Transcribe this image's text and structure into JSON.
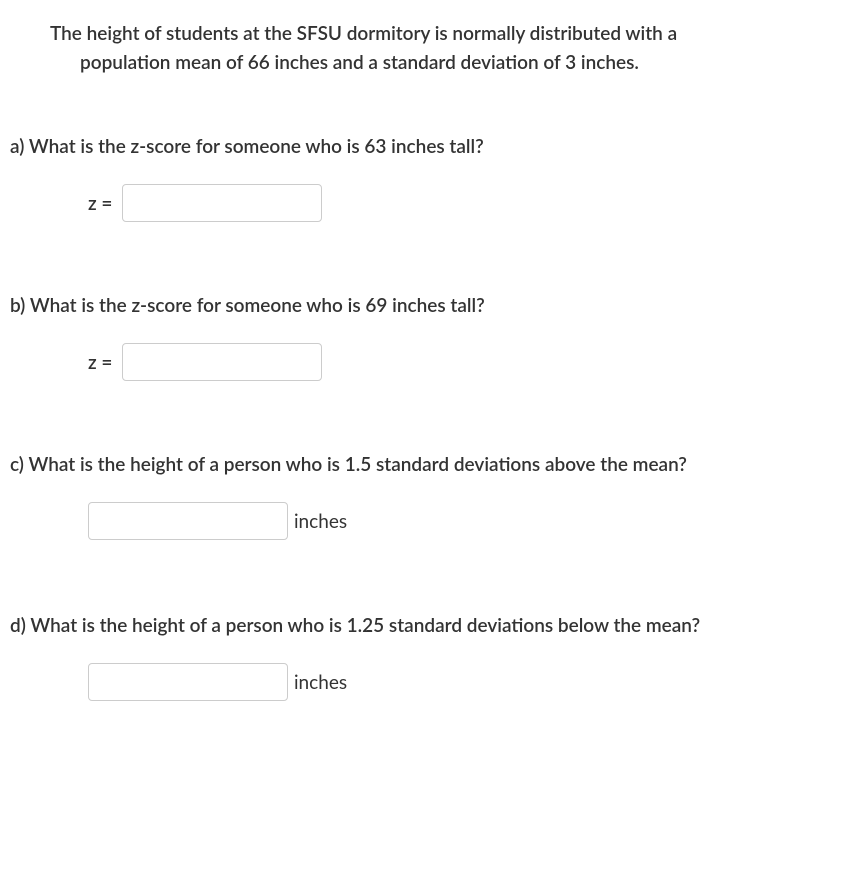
{
  "intro": {
    "line1": "The height of students at the SFSU dormitory is normally distributed with a",
    "line2": "population mean of 66 inches and a standard deviation of 3 inches."
  },
  "questions": {
    "a": {
      "text": "a) What is the z-score for someone who is 63 inches tall?",
      "label": "z =",
      "value": ""
    },
    "b": {
      "text": "b) What is the z-score for someone who is 69 inches tall?",
      "label": "z =",
      "value": ""
    },
    "c": {
      "text": "c) What is the height of a person who is 1.5 standard deviations above the mean?",
      "unit": "inches",
      "value": ""
    },
    "d": {
      "text": "d) What is the height of a person who is 1.25 standard deviations below the mean?",
      "unit": "inches",
      "value": ""
    }
  }
}
